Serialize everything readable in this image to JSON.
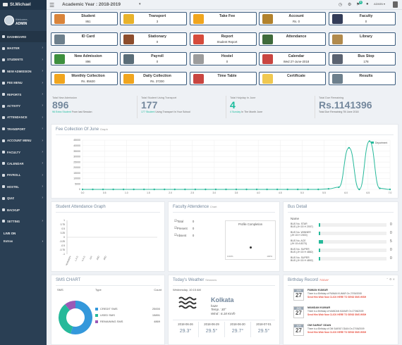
{
  "sidebar": {
    "brand": "St.Michael",
    "welcome": "Welcome,",
    "user": "ADMIN",
    "items": [
      {
        "label": "DASHBOARD",
        "chevron": false
      },
      {
        "label": "Master",
        "chevron": true
      },
      {
        "label": "STUDENTS",
        "chevron": true
      },
      {
        "label": "NEW ADMISSION",
        "chevron": true
      },
      {
        "label": "FEE MENU",
        "chevron": true
      },
      {
        "label": "REPORTS",
        "chevron": true
      },
      {
        "label": "ACTIVITY",
        "chevron": true
      },
      {
        "label": "ATTENDANCE",
        "chevron": true
      },
      {
        "label": "TRANSPORT",
        "chevron": true
      },
      {
        "label": "ACCOUNT MENU",
        "chevron": true
      },
      {
        "label": "FACULTY",
        "chevron": true
      },
      {
        "label": "CALENDAR",
        "chevron": true
      },
      {
        "label": "PAYROLL",
        "chevron": true
      },
      {
        "label": "HOSTEL",
        "chevron": true
      },
      {
        "label": "QUIZ",
        "chevron": true
      },
      {
        "label": "BACKUP",
        "chevron": false
      },
      {
        "label": "SETTING",
        "chevron": true
      }
    ],
    "section": "LIVE ON",
    "extras": "Extras"
  },
  "topbar": {
    "academic_year": "Academic Year :  2018-2019",
    "dropdown": "▾",
    "notif_count": "8",
    "admin": "ADMIN ▾"
  },
  "tiles": [
    {
      "title": "Student",
      "value": "861",
      "color": "#d9843a"
    },
    {
      "title": "Transport",
      "value": "3",
      "color": "#e8b22a"
    },
    {
      "title": "Take Fee",
      "value": "",
      "color": "#f0a51e"
    },
    {
      "title": "Account",
      "value": "Rs. 0",
      "color": "#b2822c"
    },
    {
      "title": "Faculty",
      "value": "0",
      "color": "#333c58"
    },
    {
      "title": "ID Card",
      "value": "",
      "color": "#6d7f8c"
    },
    {
      "title": "Stationary",
      "value": "0",
      "color": "#8d4d2c"
    },
    {
      "title": "Report",
      "value": "Student Report",
      "color": "#d64b3b"
    },
    {
      "title": "Attendance",
      "value": "",
      "color": "#3f6a3a"
    },
    {
      "title": "Library",
      "value": "",
      "color": "#b18a4c"
    },
    {
      "title": "New Admission",
      "value": "896",
      "color": "#3d8f3d"
    },
    {
      "title": "Payroll",
      "value": "0",
      "color": "#5a6d78"
    },
    {
      "title": "Hostel",
      "value": "0",
      "color": "#9c9c9c"
    },
    {
      "title": "Calendar",
      "value": "Wed 27-June-2018",
      "color": "#c94540"
    },
    {
      "title": "Bus Stop",
      "value": "178",
      "color": "#5a6270"
    },
    {
      "title": "Monthly Collection",
      "value": "Rs. 85630",
      "color": "#f0a51e"
    },
    {
      "title": "Daily Collection",
      "value": "Rs. 37200",
      "color": "#f0a51e"
    },
    {
      "title": "Time Table",
      "value": "",
      "color": "#c94540"
    },
    {
      "title": "Certificate",
      "value": "",
      "color": "#f0c850"
    },
    {
      "title": "Results",
      "value": "",
      "color": "#6d7f8c"
    }
  ],
  "stats": [
    {
      "head": "Total New Admission",
      "value": "896",
      "foot_green": "96 Extra Student",
      "foot": " From last Session"
    },
    {
      "head": "Total Student Using Transport",
      "value": "177",
      "foot_green": "177 Student",
      "foot": " Using Transport In Your School"
    },
    {
      "head": "Total Holyday In June",
      "value": "4",
      "foot_green": "4 Sunday",
      "foot": " In The Month June"
    },
    {
      "head": "Total Due Remaining",
      "value": "Rs.1141396",
      "foot_green": "",
      "foot": "Total Due Remaining Till June 2018"
    }
  ],
  "fee_chart": {
    "title": "Fee Collection Of June",
    "subtitle": "Graph",
    "legend": "Department",
    "y_ticks": [
      "45000",
      "40000",
      "35000",
      "30000",
      "25000",
      "20000",
      "15000",
      "10000",
      "5000",
      "0"
    ],
    "chart_data": {
      "type": "line",
      "title": "Fee Collection Of June",
      "ylim": [
        0,
        45000
      ],
      "x": [
        "0.5",
        "1",
        "2",
        "3",
        "4",
        "5",
        "6",
        "7",
        "8",
        "9",
        "10",
        "11",
        "12",
        "13",
        "14",
        "15",
        "16",
        "17",
        "18",
        "19",
        "20",
        "21",
        "22",
        "23",
        "24",
        "25",
        "26",
        "27",
        "28",
        "29",
        "30"
      ],
      "x_labels": [
        "0.0",
        "0.5",
        "1.0",
        "1.5",
        "2.0",
        "2.5",
        "3.0",
        "3.5",
        "4.0",
        "4.5",
        "5.0",
        "5.5",
        "6.0",
        "6.5",
        "7.0"
      ],
      "series": [
        {
          "name": "Department",
          "color": "#26b99a",
          "values": [
            0,
            0,
            0,
            0,
            0,
            0,
            0,
            0,
            0,
            0,
            0,
            0,
            0,
            0,
            0,
            0,
            0,
            0,
            0,
            0,
            0,
            0,
            0,
            0,
            500,
            2000,
            38000,
            0,
            44000,
            1000,
            0
          ]
        }
      ]
    }
  },
  "attendance_graph": {
    "title": "Student Attendance Graph",
    "y_ticks": [
      "1",
      "0.75",
      "0.5",
      "0.25",
      "0",
      "-0.25",
      "-0.5",
      "-0.75",
      "-1"
    ],
    "x_labels": [
      "NURSERY",
      "L.K.G",
      "U.K.G",
      "1ST",
      "2ND",
      "3RD"
    ]
  },
  "faculty": {
    "title": "Faculty Attendence",
    "subtitle": "Chart",
    "rows": [
      {
        "label": "Total",
        "value": "0"
      },
      {
        "label": "Present",
        "value": "0"
      },
      {
        "label": "Absent",
        "value": "0"
      }
    ],
    "profile_title": "Profile Completion",
    "scale_min": "0.00%",
    "scale_max": "100%"
  },
  "bus": {
    "title": "Bus Detail",
    "col_name": "Name",
    "rows": [
      {
        "name": "BUS No. STAR",
        "sub": "BUS (JH 15 H 2007)",
        "value": "0",
        "fill": 0.02
      },
      {
        "name": "BUS No. WINNER",
        "sub": "(JH 15 H 2000)",
        "value": "0",
        "fill": 0.02
      },
      {
        "name": "BUS No. ACE",
        "sub": "(JH 15 A 8373)",
        "value": "5",
        "fill": 0.06
      },
      {
        "name": "BUS No. SUPER",
        "sub": "BUS (JH 15 H 4882)",
        "value": "0",
        "fill": 0.02
      },
      {
        "name": "BUS No. SUPER",
        "sub": "BUS (JH 15 H 4892)",
        "value": "0",
        "fill": 0.02
      }
    ]
  },
  "sms": {
    "title": "SMS CHART",
    "cols": [
      "SMS",
      "Type",
      "Count"
    ],
    "rows": [
      {
        "type": "CREDIT SMS",
        "count": "25000",
        "color": "#3498db"
      },
      {
        "type": "USED SMS",
        "count": "15891",
        "color": "#26b99a"
      },
      {
        "type": "REMAINING SMS",
        "count": "4869",
        "color": "#9b59b6"
      }
    ],
    "chart_data": {
      "type": "pie",
      "categories": [
        "CREDIT SMS",
        "USED SMS",
        "REMAINING SMS"
      ],
      "values": [
        25000,
        15891,
        4869
      ]
    }
  },
  "weather": {
    "title": "Today's Weather",
    "subtitle": "Sessions",
    "datetime": "Wednesday, 10:15 AM",
    "city": "Kolkata",
    "state": "haze",
    "temp": "Temp : 30°",
    "wind": "Wind : 6.18 Km/h",
    "forecast": [
      {
        "date": "2018-06-26",
        "temp": "29.3°"
      },
      {
        "date": "2018-06-29",
        "temp": "29.5°"
      },
      {
        "date": "2018-06-30",
        "temp": "29.7°"
      },
      {
        "date": "2018-07-01",
        "temp": "29.5°"
      }
    ]
  },
  "birthday": {
    "title": "Birthday Record",
    "tag": "TODAY",
    "items": [
      {
        "month": "JUN",
        "day": "27",
        "name": "PAWAN KUMAR",
        "text": "There is a Birthday of PAWAN KUMAR On 27/06/2008",
        "cta": "Send Him Wish Now CLICK HERE TO SEND SMS WISH"
      },
      {
        "month": "JUN",
        "day": "27",
        "name": "MANDAN KUMAR",
        "text": "There is a Birthday of MANDAN KUMAR On 27/06/2009",
        "cta": "Send Him Wish Now CLICK HERE TO SEND SMS WISH"
      },
      {
        "month": "JUN",
        "day": "27",
        "name": "OM SAIRAT ODAN",
        "text": "There is a Birthday of OM SAIRAT ODAN On 27/06/2009",
        "cta": "Send Him Wish Now CLICK HERE TO SEND SMS WISH"
      }
    ]
  }
}
